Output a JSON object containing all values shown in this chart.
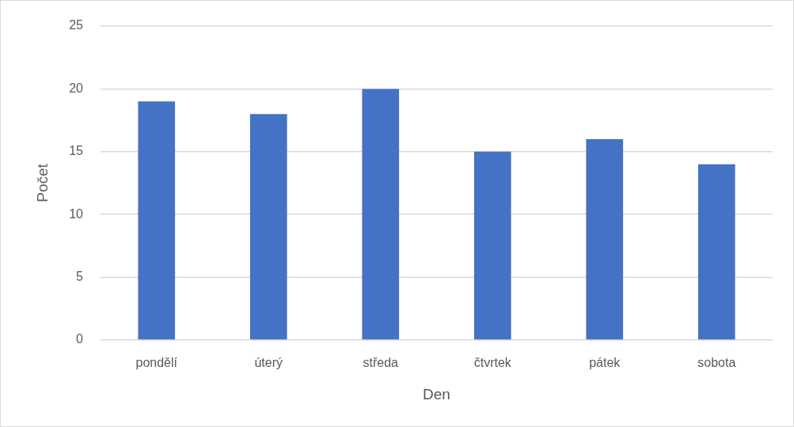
{
  "chart_data": {
    "type": "bar",
    "xlabel": "Den",
    "ylabel": "Počet",
    "categories": [
      "pondělí",
      "úterý",
      "středa",
      "čtvrtek",
      "pátek",
      "sobota"
    ],
    "values": [
      19,
      18,
      20,
      15,
      16,
      14
    ],
    "color": "#4472c4",
    "ylim": [
      0,
      25
    ],
    "yticks": [
      0,
      5,
      10,
      15,
      20,
      25
    ],
    "grid": "y",
    "legend": false
  }
}
